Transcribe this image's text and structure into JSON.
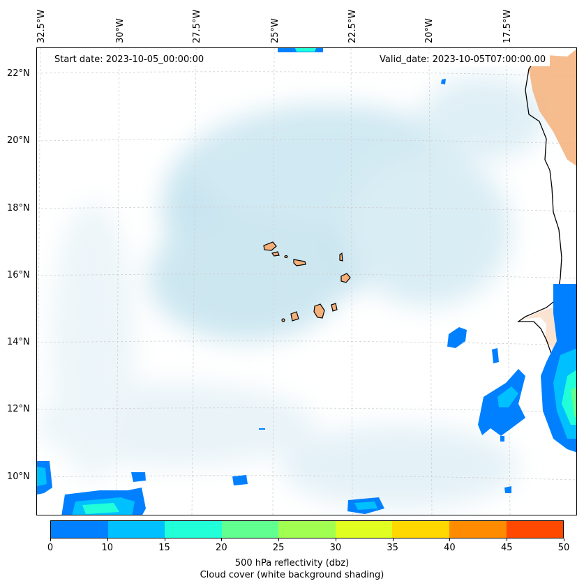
{
  "map": {
    "lon_labels": [
      "32.5°W",
      "30°W",
      "27.5°W",
      "25°W",
      "22.5°W",
      "20°W",
      "17.5°W"
    ],
    "lat_labels": [
      "22°N",
      "20°N",
      "18°N",
      "16°N",
      "14°N",
      "12°N",
      "10°N"
    ],
    "start_date": "Start date: 2023-10-05_00:00:00",
    "valid_date": "Valid_date: 2023-10-05T07:00:00.00",
    "land_color": "#f4b07a",
    "cloud_color": "#a8d4e6"
  },
  "colorbar": {
    "colors": [
      "#0080ff",
      "#00c0ff",
      "#20ffd8",
      "#60ff90",
      "#a0ff50",
      "#e0ff20",
      "#ffd800",
      "#ff8c00",
      "#ff4800"
    ],
    "ticks": [
      "0",
      "10",
      "15",
      "20",
      "25",
      "30",
      "35",
      "40",
      "45",
      "50"
    ],
    "label_line1": "500 hPa reflectivity (dbz)",
    "label_line2": "Cloud cover (white background shading)"
  }
}
